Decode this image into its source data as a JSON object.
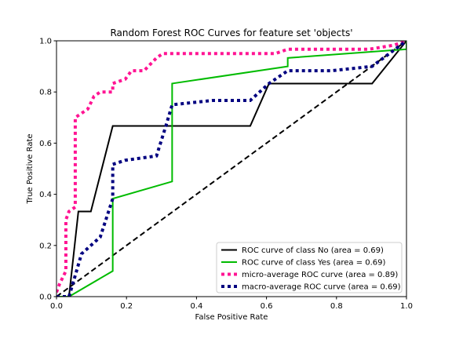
{
  "chart_data": {
    "type": "line",
    "title": "Random Forest ROC Curves for feature set 'objects'",
    "xlabel": "False Positive Rate",
    "ylabel": "True Positive Rate",
    "xlim": [
      0.0,
      1.0
    ],
    "ylim": [
      0.0,
      1.0
    ],
    "xticks": [
      0.0,
      0.2,
      0.4,
      0.6,
      0.8,
      1.0
    ],
    "yticks": [
      0.0,
      0.2,
      0.4,
      0.6,
      0.8,
      1.0
    ],
    "xtick_labels": [
      "0.0",
      "0.2",
      "0.4",
      "0.6",
      "0.8",
      "1.0"
    ],
    "ytick_labels": [
      "0.0",
      "0.2",
      "0.4",
      "0.6",
      "0.8",
      "1.0"
    ],
    "grid": false,
    "legend_position": "lower-right",
    "series": [
      {
        "name": "ROC curve of class No (area = 0.69)",
        "color": "#000000",
        "style": "solid",
        "points": [
          [
            0.0,
            0.0
          ],
          [
            0.0357,
            0.0
          ],
          [
            0.0357,
            0.0
          ],
          [
            0.0625,
            0.333
          ],
          [
            0.0982,
            0.333
          ],
          [
            0.1607,
            0.667
          ],
          [
            0.2679,
            0.667
          ],
          [
            0.3304,
            0.667
          ],
          [
            0.5536,
            0.667
          ],
          [
            0.6071,
            0.833
          ],
          [
            0.9018,
            0.833
          ],
          [
            1.0,
            1.0
          ]
        ]
      },
      {
        "name": "ROC curve of class Yes (area = 0.69)",
        "color": "#00bb00",
        "style": "solid",
        "points": [
          [
            0.0,
            0.0
          ],
          [
            0.0357,
            0.0
          ],
          [
            0.1607,
            0.1
          ],
          [
            0.1607,
            0.383
          ],
          [
            0.3304,
            0.45
          ],
          [
            0.3304,
            0.833
          ],
          [
            0.6607,
            0.9
          ],
          [
            0.6607,
            0.933
          ],
          [
            1.0,
            0.967
          ],
          [
            1.0,
            1.0
          ]
        ]
      },
      {
        "name": "micro-average ROC curve (area = 0.89)",
        "color": "#ff1493",
        "style": "dotted",
        "points": [
          [
            0.0,
            0.017
          ],
          [
            0.0089,
            0.05
          ],
          [
            0.0268,
            0.1
          ],
          [
            0.0268,
            0.3
          ],
          [
            0.0357,
            0.333
          ],
          [
            0.0536,
            0.35
          ],
          [
            0.0536,
            0.7
          ],
          [
            0.0893,
            0.733
          ],
          [
            0.1071,
            0.783
          ],
          [
            0.125,
            0.8
          ],
          [
            0.1607,
            0.8
          ],
          [
            0.1607,
            0.833
          ],
          [
            0.1964,
            0.85
          ],
          [
            0.2143,
            0.883
          ],
          [
            0.25,
            0.883
          ],
          [
            0.2857,
            0.933
          ],
          [
            0.3036,
            0.95
          ],
          [
            0.5893,
            0.95
          ],
          [
            0.625,
            0.95
          ],
          [
            0.6607,
            0.967
          ],
          [
            0.8929,
            0.967
          ],
          [
            0.9643,
            0.983
          ],
          [
            1.0,
            1.0
          ]
        ]
      },
      {
        "name": "macro-average ROC curve (area = 0.69)",
        "color": "#000080",
        "style": "dotted",
        "points": [
          [
            0.0,
            0.0
          ],
          [
            0.0268,
            0.0
          ],
          [
            0.0357,
            0.0
          ],
          [
            0.0536,
            0.083
          ],
          [
            0.0714,
            0.167
          ],
          [
            0.0982,
            0.2
          ],
          [
            0.125,
            0.233
          ],
          [
            0.1607,
            0.383
          ],
          [
            0.1607,
            0.517
          ],
          [
            0.1964,
            0.533
          ],
          [
            0.2857,
            0.55
          ],
          [
            0.3125,
            0.667
          ],
          [
            0.3304,
            0.75
          ],
          [
            0.4464,
            0.767
          ],
          [
            0.5536,
            0.767
          ],
          [
            0.6071,
            0.833
          ],
          [
            0.6607,
            0.883
          ],
          [
            0.7857,
            0.883
          ],
          [
            0.9018,
            0.9
          ],
          [
            1.0,
            1.0
          ]
        ]
      },
      {
        "name": "",
        "color": "#000000",
        "style": "dashed",
        "points": [
          [
            0.0,
            0.0
          ],
          [
            1.0,
            1.0
          ]
        ]
      }
    ]
  }
}
